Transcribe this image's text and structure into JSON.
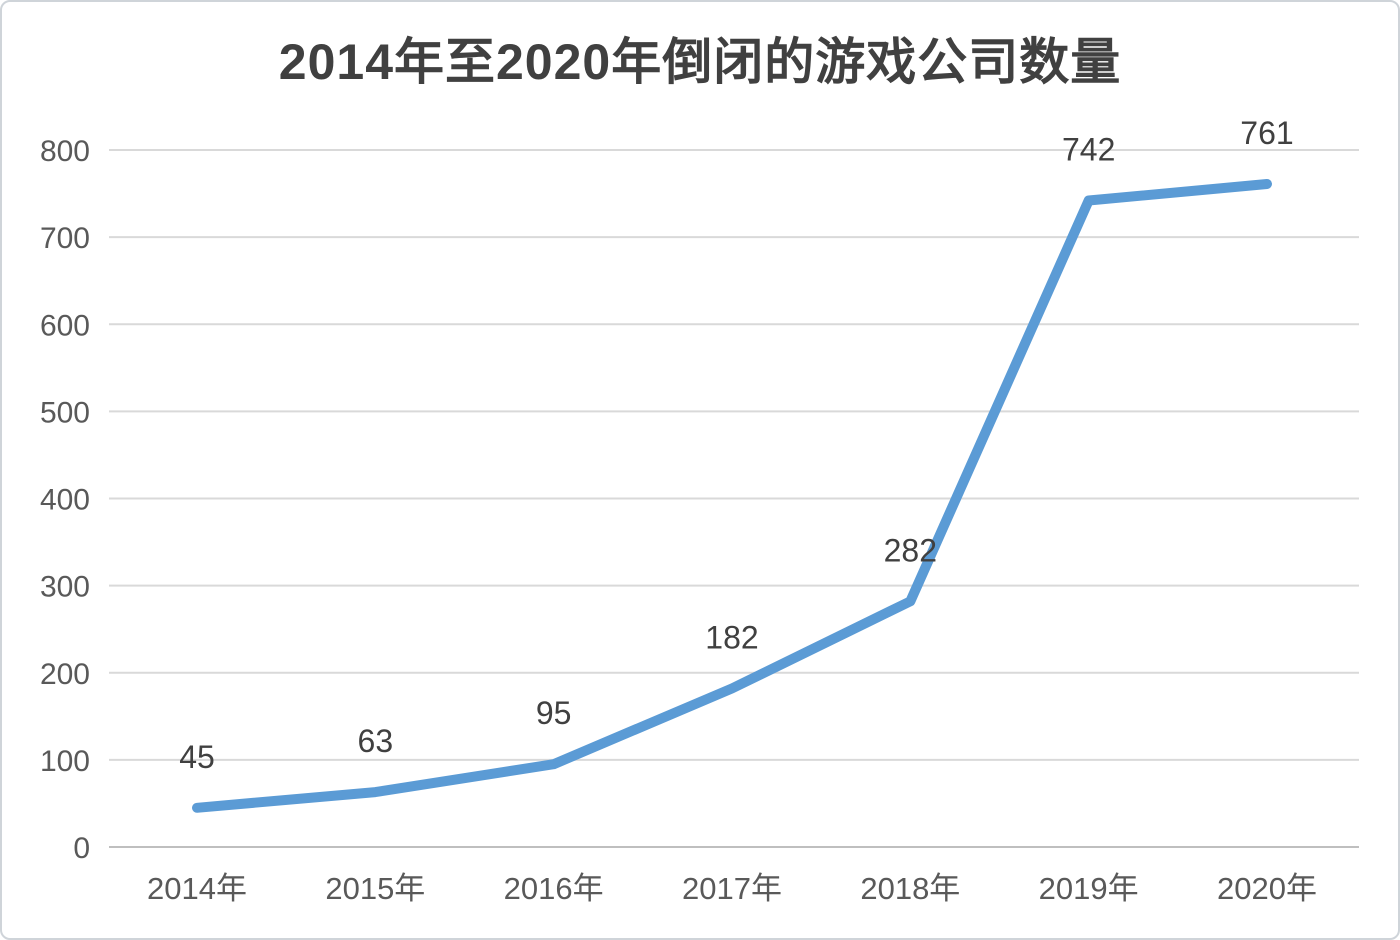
{
  "chart": {
    "title": "2014年至2020年倒闭的游戏公司数量"
  },
  "chart_data": {
    "type": "line",
    "title": "2014年至2020年倒闭的游戏公司数量",
    "categories": [
      "2014年",
      "2015年",
      "2016年",
      "2017年",
      "2018年",
      "2019年",
      "2020年"
    ],
    "values": [
      45,
      63,
      95,
      182,
      282,
      742,
      761
    ],
    "data_labels": [
      "45",
      "63",
      "95",
      "182",
      "282",
      "742",
      "761"
    ],
    "xlabel": "",
    "ylabel": "",
    "ylim": [
      0,
      800
    ],
    "ytick_step": 100,
    "ytick_labels": [
      "0",
      "100",
      "200",
      "300",
      "400",
      "500",
      "600",
      "700",
      "800"
    ],
    "grid": true,
    "legend": false,
    "legend_position": "none",
    "colors": {
      "line": "#5B9BD5",
      "gridline": "#D9D9D9",
      "axis_line": "#BFBFBF",
      "axis_label": "#595959",
      "data_label": "#404040",
      "title": "#404040",
      "background": "#FFFFFF",
      "border": "#CFD4D9"
    }
  }
}
